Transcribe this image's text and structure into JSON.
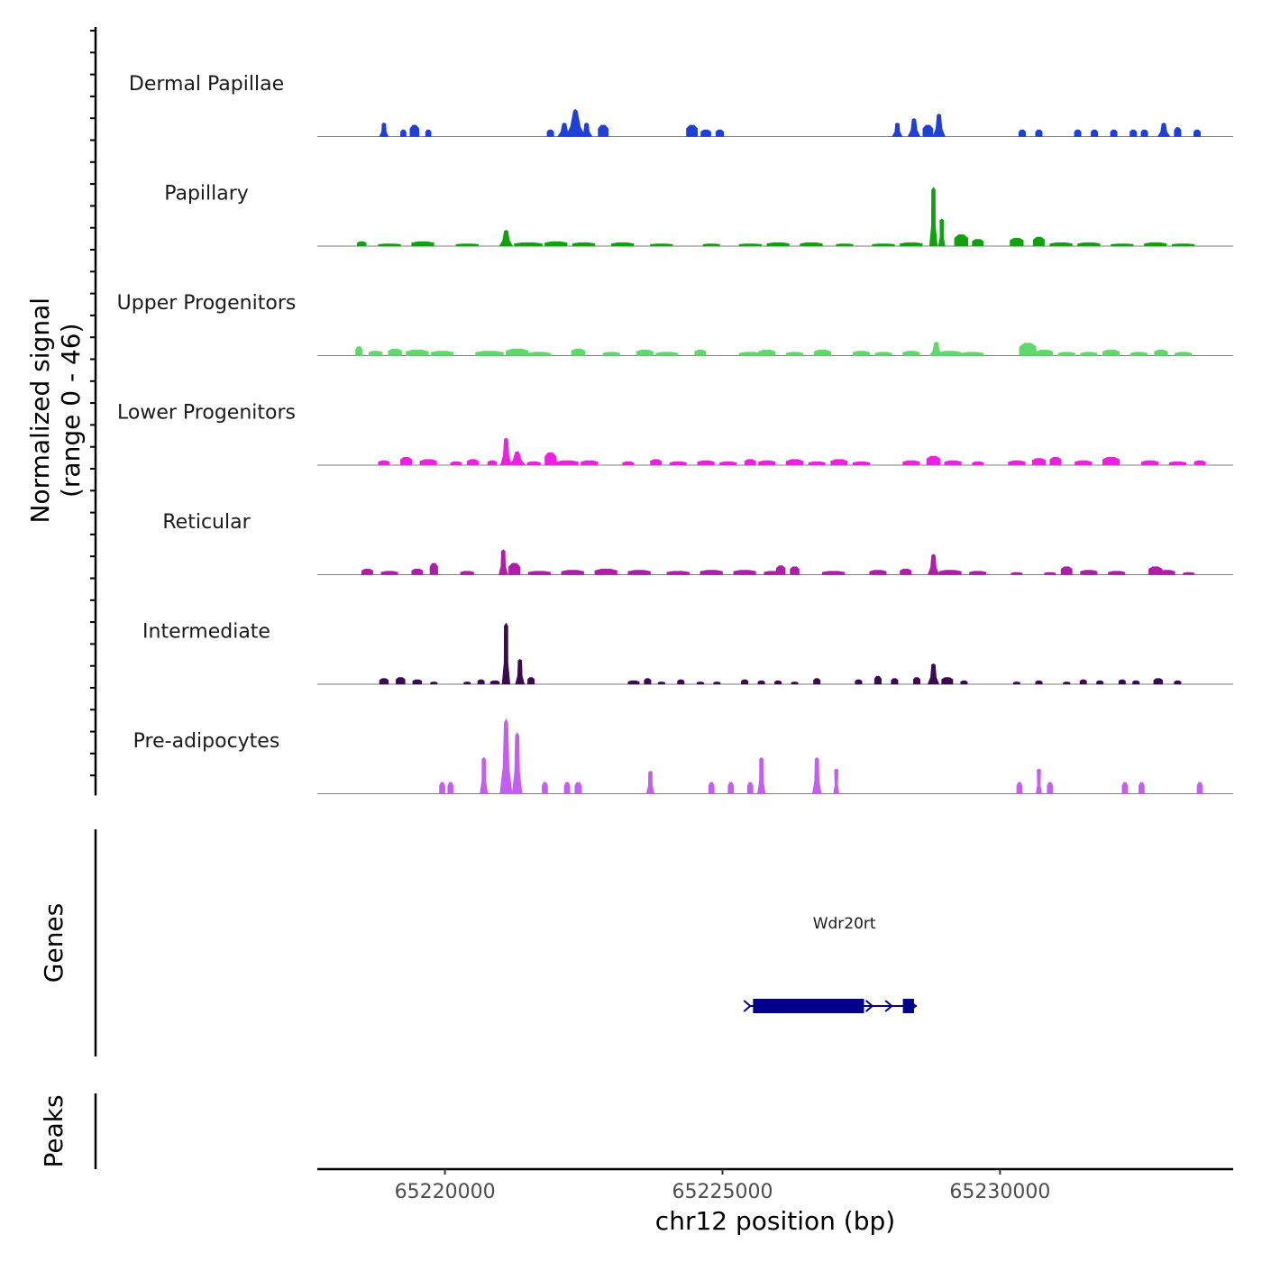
{
  "chart_data": {
    "type": "area",
    "chromosome": "chr12",
    "xlabel": "chr12 position (bp)",
    "ylabel_line1": "Normalized signal",
    "ylabel_line2": "(range 0 - 46)",
    "y_range": [
      0,
      46
    ],
    "xlim": [
      65217700,
      65234200
    ],
    "x_ticks": [
      65220000,
      65225000,
      65230000
    ],
    "x_tick_labels": [
      "65220000",
      "65225000",
      "65230000"
    ],
    "series": [
      {
        "name": "Dermal Papillae",
        "color": "#1f3fdb",
        "peaks": [
          [
            65218900,
            80,
            6
          ],
          [
            65219250,
            50,
            3
          ],
          [
            65219450,
            80,
            5
          ],
          [
            65219700,
            50,
            3
          ],
          [
            65221900,
            60,
            3
          ],
          [
            65222150,
            120,
            6
          ],
          [
            65222350,
            180,
            12
          ],
          [
            65222550,
            100,
            6
          ],
          [
            65222850,
            90,
            5
          ],
          [
            65224450,
            100,
            5
          ],
          [
            65224700,
            90,
            3
          ],
          [
            65224950,
            70,
            3
          ],
          [
            65228150,
            90,
            6
          ],
          [
            65228450,
            110,
            8
          ],
          [
            65228700,
            90,
            5
          ],
          [
            65228900,
            110,
            10
          ],
          [
            65230400,
            60,
            3
          ],
          [
            65230700,
            60,
            3
          ],
          [
            65231400,
            60,
            3
          ],
          [
            65231700,
            60,
            3
          ],
          [
            65232050,
            60,
            3
          ],
          [
            65232400,
            60,
            3
          ],
          [
            65232600,
            60,
            3
          ],
          [
            65232950,
            110,
            6
          ],
          [
            65233200,
            60,
            4
          ],
          [
            65233550,
            60,
            3
          ]
        ]
      },
      {
        "name": "Papillary",
        "color": "#11a00e",
        "peaks": [
          [
            65218500,
            80,
            2
          ],
          [
            65219000,
            200,
            1
          ],
          [
            65219600,
            200,
            2
          ],
          [
            65220400,
            200,
            1
          ],
          [
            65221100,
            120,
            7
          ],
          [
            65221500,
            250,
            1.5
          ],
          [
            65222000,
            200,
            2
          ],
          [
            65222500,
            200,
            1.5
          ],
          [
            65223200,
            200,
            1.5
          ],
          [
            65223900,
            200,
            1
          ],
          [
            65224800,
            150,
            1
          ],
          [
            65225500,
            200,
            1
          ],
          [
            65226000,
            200,
            1.5
          ],
          [
            65226600,
            200,
            1.5
          ],
          [
            65227200,
            150,
            1
          ],
          [
            65227900,
            200,
            1
          ],
          [
            65228400,
            200,
            1.5
          ],
          [
            65228800,
            70,
            26
          ],
          [
            65228950,
            60,
            12
          ],
          [
            65229300,
            120,
            5
          ],
          [
            65229600,
            100,
            3
          ],
          [
            65230300,
            120,
            3.5
          ],
          [
            65230700,
            100,
            4
          ],
          [
            65231100,
            200,
            1.5
          ],
          [
            65231600,
            200,
            1.5
          ],
          [
            65232200,
            200,
            1
          ],
          [
            65232800,
            200,
            1.5
          ],
          [
            65233300,
            200,
            1
          ]
        ]
      },
      {
        "name": "Upper Progenitors",
        "color": "#5ed96a",
        "peaks": [
          [
            65218450,
            60,
            4
          ],
          [
            65218750,
            120,
            2
          ],
          [
            65219100,
            120,
            3
          ],
          [
            65219500,
            200,
            2.5
          ],
          [
            65219950,
            200,
            2
          ],
          [
            65220800,
            250,
            2
          ],
          [
            65221300,
            200,
            3
          ],
          [
            65221700,
            200,
            1.5
          ],
          [
            65222400,
            120,
            3
          ],
          [
            65223000,
            150,
            1.5
          ],
          [
            65223600,
            150,
            2.5
          ],
          [
            65224000,
            200,
            1.5
          ],
          [
            65224600,
            100,
            2.5
          ],
          [
            65225500,
            200,
            1.5
          ],
          [
            65225800,
            150,
            2.5
          ],
          [
            65226300,
            150,
            1.5
          ],
          [
            65226800,
            150,
            2.5
          ],
          [
            65227500,
            150,
            2
          ],
          [
            65227900,
            150,
            1.5
          ],
          [
            65228400,
            150,
            2
          ],
          [
            65228850,
            120,
            6
          ],
          [
            65229100,
            200,
            2
          ],
          [
            65229500,
            200,
            1.5
          ],
          [
            65230500,
            150,
            5.5
          ],
          [
            65230800,
            150,
            2.5
          ],
          [
            65231200,
            150,
            1.5
          ],
          [
            65231600,
            150,
            1.5
          ],
          [
            65232000,
            150,
            2.5
          ],
          [
            65232500,
            150,
            1.5
          ],
          [
            65232900,
            120,
            2.5
          ],
          [
            65233300,
            150,
            1.5
          ]
        ]
      },
      {
        "name": "Lower Progenitors",
        "color": "#ee1fe0",
        "peaks": [
          [
            65218900,
            100,
            2
          ],
          [
            65219300,
            100,
            3.5
          ],
          [
            65219700,
            150,
            2.5
          ],
          [
            65220200,
            100,
            1.5
          ],
          [
            65220500,
            100,
            2.5
          ],
          [
            65220850,
            80,
            2
          ],
          [
            65221100,
            100,
            12
          ],
          [
            65221300,
            150,
            6
          ],
          [
            65221600,
            120,
            1.5
          ],
          [
            65221900,
            100,
            5.5
          ],
          [
            65222200,
            200,
            2
          ],
          [
            65222600,
            150,
            2
          ],
          [
            65223300,
            100,
            1.5
          ],
          [
            65223800,
            100,
            2.5
          ],
          [
            65224200,
            150,
            1.5
          ],
          [
            65224700,
            150,
            2
          ],
          [
            65225100,
            150,
            1.5
          ],
          [
            65225500,
            100,
            2.5
          ],
          [
            65225800,
            150,
            2
          ],
          [
            65226300,
            150,
            2.5
          ],
          [
            65226700,
            150,
            1.5
          ],
          [
            65227100,
            150,
            2.5
          ],
          [
            65227500,
            150,
            1.5
          ],
          [
            65228400,
            150,
            2
          ],
          [
            65228800,
            120,
            4
          ],
          [
            65229150,
            150,
            2
          ],
          [
            65229600,
            100,
            1.5
          ],
          [
            65230300,
            150,
            2
          ],
          [
            65230700,
            120,
            3
          ],
          [
            65231000,
            100,
            3.5
          ],
          [
            65231500,
            150,
            2
          ],
          [
            65232000,
            150,
            3.5
          ],
          [
            65232700,
            150,
            2
          ],
          [
            65233200,
            150,
            1.5
          ],
          [
            65233600,
            100,
            2
          ]
        ]
      },
      {
        "name": "Reticular",
        "color": "#ae1ea8",
        "peaks": [
          [
            65218600,
            100,
            2.5
          ],
          [
            65219000,
            150,
            1.5
          ],
          [
            65219500,
            100,
            2.5
          ],
          [
            65219800,
            70,
            5
          ],
          [
            65220400,
            120,
            1.5
          ],
          [
            65221050,
            80,
            11
          ],
          [
            65221250,
            100,
            5
          ],
          [
            65221700,
            200,
            1.5
          ],
          [
            65222300,
            200,
            2
          ],
          [
            65222900,
            200,
            2.5
          ],
          [
            65223500,
            200,
            2
          ],
          [
            65224200,
            200,
            1.5
          ],
          [
            65224800,
            200,
            2
          ],
          [
            65225400,
            200,
            2
          ],
          [
            65225900,
            150,
            1.5
          ],
          [
            65226050,
            80,
            4
          ],
          [
            65226300,
            80,
            3.5
          ],
          [
            65227000,
            200,
            1.5
          ],
          [
            65227800,
            150,
            2
          ],
          [
            65228300,
            100,
            2.5
          ],
          [
            65228800,
            100,
            9
          ],
          [
            65229100,
            200,
            2
          ],
          [
            65229600,
            150,
            1.5
          ],
          [
            65230300,
            100,
            1
          ],
          [
            65230900,
            100,
            1
          ],
          [
            65231200,
            100,
            3.5
          ],
          [
            65231600,
            150,
            2
          ],
          [
            65232100,
            150,
            1.5
          ],
          [
            65232800,
            120,
            3.5
          ],
          [
            65233000,
            150,
            2
          ],
          [
            65233400,
            100,
            1
          ]
        ]
      },
      {
        "name": "Intermediate",
        "color": "#3a0a55",
        "peaks": [
          [
            65218900,
            80,
            2.5
          ],
          [
            65219200,
            80,
            3
          ],
          [
            65219500,
            80,
            2
          ],
          [
            65219800,
            60,
            1
          ],
          [
            65220400,
            60,
            1
          ],
          [
            65220650,
            60,
            2
          ],
          [
            65220900,
            80,
            1.5
          ],
          [
            65221100,
            70,
            27
          ],
          [
            65221350,
            80,
            11
          ],
          [
            65221550,
            60,
            3
          ],
          [
            65223400,
            100,
            1.5
          ],
          [
            65223650,
            60,
            2.5
          ],
          [
            65223900,
            60,
            1
          ],
          [
            65224250,
            60,
            2
          ],
          [
            65224600,
            60,
            1
          ],
          [
            65224900,
            60,
            1
          ],
          [
            65225400,
            60,
            2
          ],
          [
            65225700,
            60,
            1.5
          ],
          [
            65226000,
            60,
            1.5
          ],
          [
            65226300,
            60,
            1
          ],
          [
            65226700,
            60,
            2.5
          ],
          [
            65227450,
            60,
            2
          ],
          [
            65227800,
            60,
            3.5
          ],
          [
            65228100,
            60,
            2.5
          ],
          [
            65228500,
            60,
            3
          ],
          [
            65228800,
            100,
            9
          ],
          [
            65229050,
            100,
            3
          ],
          [
            65229350,
            60,
            1.5
          ],
          [
            65230300,
            60,
            1
          ],
          [
            65230700,
            60,
            1.5
          ],
          [
            65231200,
            60,
            1
          ],
          [
            65231500,
            60,
            2
          ],
          [
            65231800,
            60,
            1.5
          ],
          [
            65232200,
            60,
            2
          ],
          [
            65232450,
            60,
            1.5
          ],
          [
            65232850,
            80,
            2.5
          ],
          [
            65233200,
            60,
            1.5
          ]
        ]
      },
      {
        "name": "Pre-adipocytes",
        "color": "#c45ef2",
        "peaks": [
          [
            65219950,
            50,
            5
          ],
          [
            65220100,
            50,
            5
          ],
          [
            65220700,
            70,
            16
          ],
          [
            65221100,
            110,
            33
          ],
          [
            65221300,
            90,
            27
          ],
          [
            65221800,
            50,
            5
          ],
          [
            65222200,
            50,
            5
          ],
          [
            65222400,
            60,
            5
          ],
          [
            65223700,
            70,
            10
          ],
          [
            65224800,
            50,
            5
          ],
          [
            65225150,
            50,
            5
          ],
          [
            65225500,
            50,
            5
          ],
          [
            65225700,
            70,
            16
          ],
          [
            65226700,
            80,
            16
          ],
          [
            65227050,
            50,
            11
          ],
          [
            65230350,
            50,
            5
          ],
          [
            65230700,
            50,
            11
          ],
          [
            65230900,
            50,
            5
          ],
          [
            65232250,
            50,
            5
          ],
          [
            65232550,
            50,
            5
          ],
          [
            65233600,
            50,
            5
          ]
        ]
      }
    ],
    "genes_track_label": "Genes",
    "peaks_track_label": "Peaks",
    "gene": {
      "name": "Wdr20rt",
      "color": "#00008b",
      "strand": "+",
      "start": 65225500,
      "end": 65228500,
      "exons": [
        [
          65225550,
          65227550
        ],
        [
          65228250,
          65228450
        ]
      ]
    }
  }
}
